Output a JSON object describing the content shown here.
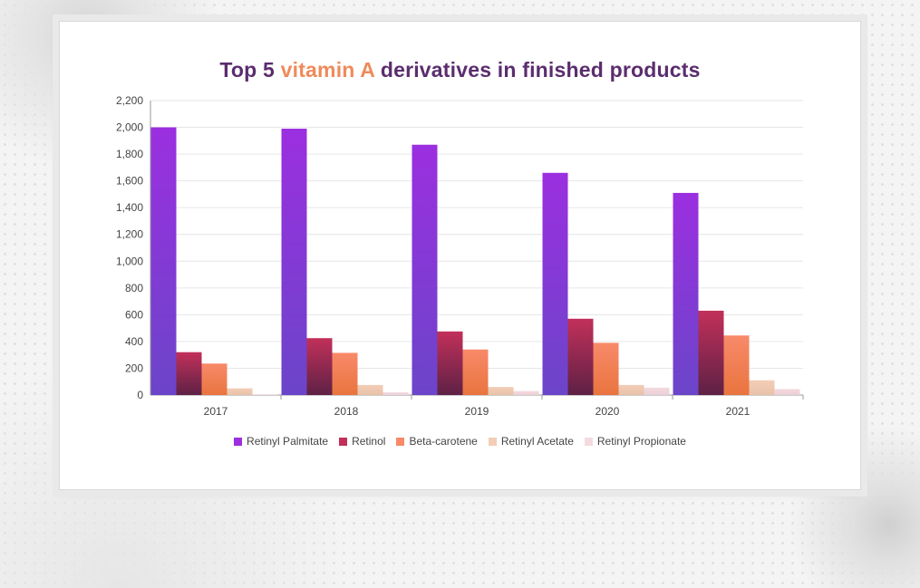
{
  "title": {
    "prefix": "Top 5 ",
    "highlight": "vitamin A",
    "suffix": " derivatives in finished products"
  },
  "colors": {
    "title": "#5b2d6e",
    "highlight": "#ef8a5a",
    "series": [
      "#9b2fe0",
      "#c2305a",
      "#f88a6a",
      "#f3cdb6",
      "#f4dadf"
    ]
  },
  "chart_data": {
    "type": "bar",
    "title": "Top 5 vitamin A derivatives in finished products",
    "categories": [
      "2017",
      "2018",
      "2019",
      "2020",
      "2021"
    ],
    "series": [
      {
        "name": "Retinyl Palmitate",
        "values": [
          2000,
          1990,
          1870,
          1660,
          1510
        ]
      },
      {
        "name": "Retinol",
        "values": [
          320,
          425,
          475,
          570,
          630
        ]
      },
      {
        "name": "Beta-carotene",
        "values": [
          235,
          315,
          340,
          390,
          445
        ]
      },
      {
        "name": "Retinyl Acetate",
        "values": [
          50,
          75,
          60,
          75,
          110
        ]
      },
      {
        "name": "Retinyl Propionate",
        "values": [
          5,
          20,
          30,
          55,
          45
        ]
      }
    ],
    "yticks": [
      "0",
      "200",
      "400",
      "600",
      "800",
      "1,000",
      "1,200",
      "1,400",
      "1,600",
      "1,800",
      "2,000",
      "2,200"
    ],
    "ylim": [
      0,
      2200
    ],
    "xlabel": "",
    "ylabel": "",
    "grid": true,
    "legend": "bottom"
  }
}
